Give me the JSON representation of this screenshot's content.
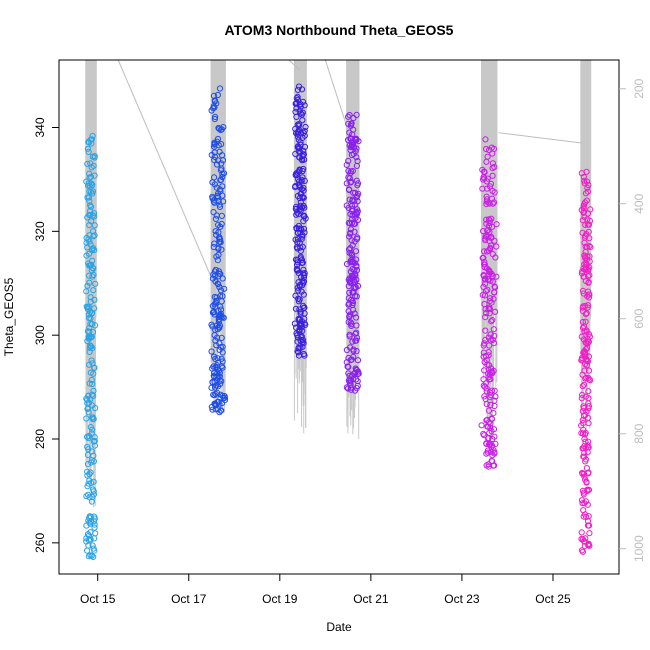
{
  "chart_data": {
    "type": "scatter",
    "title": "ATOM3 Northbound Theta_GEOS5",
    "xlabel": "Date",
    "ylabel": "Theta_GEOS5",
    "x_ticks": [
      {
        "day": 15,
        "label": "Oct 15"
      },
      {
        "day": 17,
        "label": "Oct 17"
      },
      {
        "day": 19,
        "label": "Oct 19"
      },
      {
        "day": 21,
        "label": "Oct 21"
      },
      {
        "day": 23,
        "label": "Oct 23"
      },
      {
        "day": 25,
        "label": "Oct 25"
      }
    ],
    "y_ticks": [
      260,
      280,
      300,
      320,
      340
    ],
    "y_right_ticks": [
      200,
      400,
      600,
      800,
      1000
    ],
    "xlim": [
      14.15,
      26.45
    ],
    "ylim": [
      254,
      353
    ],
    "y_right_lim": [
      1044,
      150
    ],
    "grid": false,
    "secondary_series_color": "#bdbdbd",
    "flights": [
      {
        "x_center": 14.85,
        "x_spread": 0.12,
        "color": "#29a3e6",
        "theta_min": 257,
        "theta_max": 339,
        "pressure_min": 150,
        "pressure_max": 930
      },
      {
        "x_center": 17.65,
        "x_spread": 0.16,
        "color": "#1f4ee6",
        "theta_min": 285,
        "theta_max": 349,
        "pressure_min": 150,
        "pressure_max": 780
      },
      {
        "x_center": 19.45,
        "x_spread": 0.13,
        "color": "#3a1fe0",
        "theta_min": 296,
        "theta_max": 348,
        "pressure_min": 150,
        "pressure_max": 800
      },
      {
        "x_center": 20.6,
        "x_spread": 0.14,
        "color": "#8a1ff0",
        "theta_min": 289,
        "theta_max": 343,
        "pressure_min": 150,
        "pressure_max": 810
      },
      {
        "x_center": 23.6,
        "x_spread": 0.18,
        "color": "#c81fe6",
        "theta_min": 274,
        "theta_max": 339,
        "pressure_min": 150,
        "pressure_max": 810
      },
      {
        "x_center": 25.72,
        "x_spread": 0.11,
        "color": "#f01fc8",
        "theta_min": 258,
        "theta_max": 332,
        "pressure_min": 150,
        "pressure_max": 800
      }
    ],
    "connector_lines": [
      [
        [
          15.45,
          353
        ],
        [
          17.55,
          310
        ]
      ],
      [
        [
          19.2,
          353
        ],
        [
          19.45,
          351
        ]
      ],
      [
        [
          20.0,
          353
        ],
        [
          20.7,
          334
        ]
      ],
      [
        [
          23.8,
          339
        ],
        [
          25.65,
          337
        ]
      ]
    ]
  }
}
